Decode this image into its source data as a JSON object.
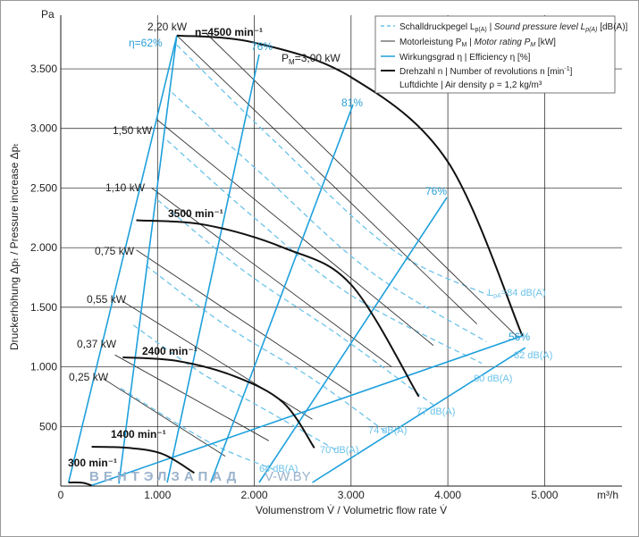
{
  "chart_data": {
    "type": "line",
    "ylabel_unit": "Pa",
    "xlabel_unit": "m³/h",
    "xlabel": "Volumenstrom V̇ / Volumetric flow rate V̇",
    "ylabel": "Druckerhöhung Δpₜ / Pressure increase Δpₜ",
    "xlim": [
      0,
      5800
    ],
    "ylim": [
      0,
      3950
    ],
    "x_ticks": [
      0,
      1000,
      2000,
      3000,
      4000,
      5000
    ],
    "x_tick_labels": [
      "0",
      "1.000",
      "2.000",
      "3.000",
      "4.000",
      "5.000"
    ],
    "y_ticks": [
      500,
      1000,
      1500,
      2000,
      2500,
      3000,
      3500
    ],
    "y_tick_labels": [
      "500",
      "1.000",
      "1.500",
      "2.000",
      "2.500",
      "3.000",
      "3.500"
    ],
    "grid": true,
    "legend_position": "top-right",
    "legend": [
      {
        "key": "sound",
        "text": "Schalldruckpegel L_p(A) | Sound pressure level L_p(A) [dB(A)]"
      },
      {
        "key": "power",
        "text": "Motorleistung P_M | Motor rating P_M [kW]"
      },
      {
        "key": "eff",
        "text": "Wirkungsgrad η | Efficiency η [%]"
      },
      {
        "key": "speed",
        "text": "Drehzahl n | Number of revolutions n [min⁻¹]"
      },
      {
        "key": "density",
        "text": "Luftdichte | Air density ρ = 1,2 kg/m³"
      }
    ],
    "speed_curves": [
      {
        "label": "n=4500 min⁻¹",
        "points": [
          [
            1200,
            3780
          ],
          [
            2000,
            3720
          ],
          [
            3000,
            3430
          ],
          [
            4000,
            2720
          ],
          [
            4770,
            1260
          ]
        ]
      },
      {
        "label": "3500 min⁻¹",
        "points": [
          [
            780,
            2230
          ],
          [
            1500,
            2190
          ],
          [
            2300,
            2000
          ],
          [
            3000,
            1690
          ],
          [
            3700,
            750
          ]
        ]
      },
      {
        "label": "2400 min⁻¹",
        "points": [
          [
            640,
            1080
          ],
          [
            1200,
            1050
          ],
          [
            1800,
            920
          ],
          [
            2300,
            700
          ],
          [
            2620,
            320
          ]
        ]
      },
      {
        "label": "1400 min⁻¹",
        "points": [
          [
            320,
            330
          ],
          [
            700,
            320
          ],
          [
            1050,
            270
          ],
          [
            1380,
            110
          ]
        ]
      },
      {
        "label": "300 min⁻¹",
        "points": [
          [
            80,
            30
          ],
          [
            220,
            28
          ],
          [
            320,
            5
          ]
        ]
      }
    ],
    "system_lines": [
      {
        "points": [
          [
            1200,
            3780
          ],
          [
            80,
            30
          ]
        ]
      },
      {
        "points": [
          [
            4770,
            1260
          ],
          [
            320,
            5
          ]
        ]
      }
    ],
    "efficiency_lines": [
      {
        "label": "η=62%",
        "points": [
          [
            1200,
            3780
          ],
          [
            600,
            20
          ]
        ]
      },
      {
        "label": "76%",
        "points": [
          [
            2050,
            3620
          ],
          [
            1100,
            30
          ]
        ]
      },
      {
        "label": "81%",
        "points": [
          [
            3020,
            3200
          ],
          [
            1550,
            30
          ]
        ]
      },
      {
        "label": "76%",
        "points": [
          [
            3990,
            2420
          ],
          [
            2050,
            30
          ]
        ]
      },
      {
        "label": "56%",
        "points": [
          [
            4800,
            1160
          ],
          [
            2600,
            30
          ]
        ]
      }
    ],
    "power_lines": [
      {
        "label": "P_M=3,00 kW",
        "points": [
          [
            1500,
            3800
          ],
          [
            4720,
            1250
          ]
        ]
      },
      {
        "label": "2,20 kW",
        "points": [
          [
            1200,
            3780
          ],
          [
            4300,
            1360
          ]
        ]
      },
      {
        "label": "1,50 kW",
        "points": [
          [
            1000,
            3070
          ],
          [
            3850,
            1180
          ]
        ]
      },
      {
        "label": "1,10 kW",
        "points": [
          [
            940,
            2500
          ],
          [
            3420,
            1000
          ]
        ]
      },
      {
        "label": "0,75 kW",
        "points": [
          [
            780,
            1980
          ],
          [
            3000,
            780
          ]
        ]
      },
      {
        "label": "0,55 kW",
        "points": [
          [
            640,
            1550
          ],
          [
            2600,
            560
          ]
        ]
      },
      {
        "label": "0,37 kW",
        "points": [
          [
            560,
            1100
          ],
          [
            2150,
            380
          ]
        ]
      },
      {
        "label": "0,25 kW",
        "points": [
          [
            440,
            900
          ],
          [
            1700,
            250
          ]
        ]
      }
    ],
    "sound_curves": [
      {
        "label": "L_pA=84 dB(A)",
        "points": [
          [
            1200,
            3700
          ],
          [
            2200,
            2900
          ],
          [
            3400,
            2000
          ],
          [
            4420,
            1600
          ]
        ]
      },
      {
        "label": "82 dB(A)",
        "points": [
          [
            1150,
            3300
          ],
          [
            2100,
            2600
          ],
          [
            3200,
            1800
          ],
          [
            4400,
            1210
          ]
        ]
      },
      {
        "label": "80 dB(A)",
        "points": [
          [
            1100,
            2900
          ],
          [
            2000,
            2250
          ],
          [
            3000,
            1600
          ],
          [
            4350,
            1030
          ]
        ]
      },
      {
        "label": "77 dB(A)",
        "points": [
          [
            1000,
            2400
          ],
          [
            1900,
            1800
          ],
          [
            2900,
            1250
          ],
          [
            3850,
            680
          ]
        ]
      },
      {
        "label": "74 dB(A)",
        "points": [
          [
            880,
            1850
          ],
          [
            1700,
            1350
          ],
          [
            2600,
            900
          ],
          [
            3400,
            430
          ]
        ]
      },
      {
        "label": "70 dB(A)",
        "points": [
          [
            750,
            1350
          ],
          [
            1450,
            950
          ],
          [
            2200,
            600
          ],
          [
            2850,
            300
          ]
        ]
      },
      {
        "label": "64 dB(A)",
        "points": [
          [
            620,
            820
          ],
          [
            1150,
            550
          ],
          [
            1650,
            320
          ],
          [
            2200,
            140
          ]
        ]
      }
    ]
  },
  "annotations": {
    "speed_4500": "n=4500 min⁻¹",
    "speed_3500": "3500 min⁻¹",
    "speed_2400": "2400 min⁻¹",
    "speed_1400": "1400 min⁻¹",
    "speed_300": "300 min⁻¹",
    "pm_300": "P",
    "pm_300_sub": "M",
    "pm_300_val": "=3,00 kW",
    "kw_220": "2,20 kW",
    "kw_150": "1,50 kW",
    "kw_110": "1,10 kW",
    "kw_075": "0,75 kW",
    "kw_055": "0,55 kW",
    "kw_037": "0,37 kW",
    "kw_025": "0,25 kW",
    "eff_62": "η=62%",
    "eff_76a": "76%",
    "eff_81": "81%",
    "eff_76b": "76%",
    "eff_56": "56%",
    "db_84": "L",
    "db_84_sub": "pA",
    "db_84_val": "=84 dB(A)",
    "db_82": "82 dB(A)",
    "db_80": "80 dB(A)",
    "db_77": "77 dB(A)",
    "db_74": "74 dB(A)",
    "db_70": "70 dB(A)",
    "db_64": "64 dB(A)"
  },
  "legend_text": {
    "sound_de": "Schalldruckpegel L",
    "sound_sub": "p(A)",
    "sound_en": " | Sound pressure level L",
    "sound_en_sub": "p(A)",
    "sound_unit": " [dB(A)]",
    "power_de": "Motorleistung P",
    "power_sub": "M",
    "power_en": " | Motor rating P",
    "power_en_sub": "M",
    "power_unit": " [kW]",
    "eff": "Wirkungsgrad η | Efficiency η [%]",
    "speed_de": "Drehzahl n | Number of revolutions n [min",
    "speed_sup": "-1",
    "speed_end": "]",
    "density": "Luftdichte | Air density ρ = 1,2 kg/m³"
  },
  "watermark": {
    "brand": "ВЕНТЭЛЗАПАД",
    "site": "V-W.BY"
  },
  "colors": {
    "grid": "#1a1a1a",
    "speed": "#111111",
    "power": "#333333",
    "efficiency": "#1ea0dc",
    "sound": "#6cc3ea",
    "watermark": "#9bb3cc"
  }
}
